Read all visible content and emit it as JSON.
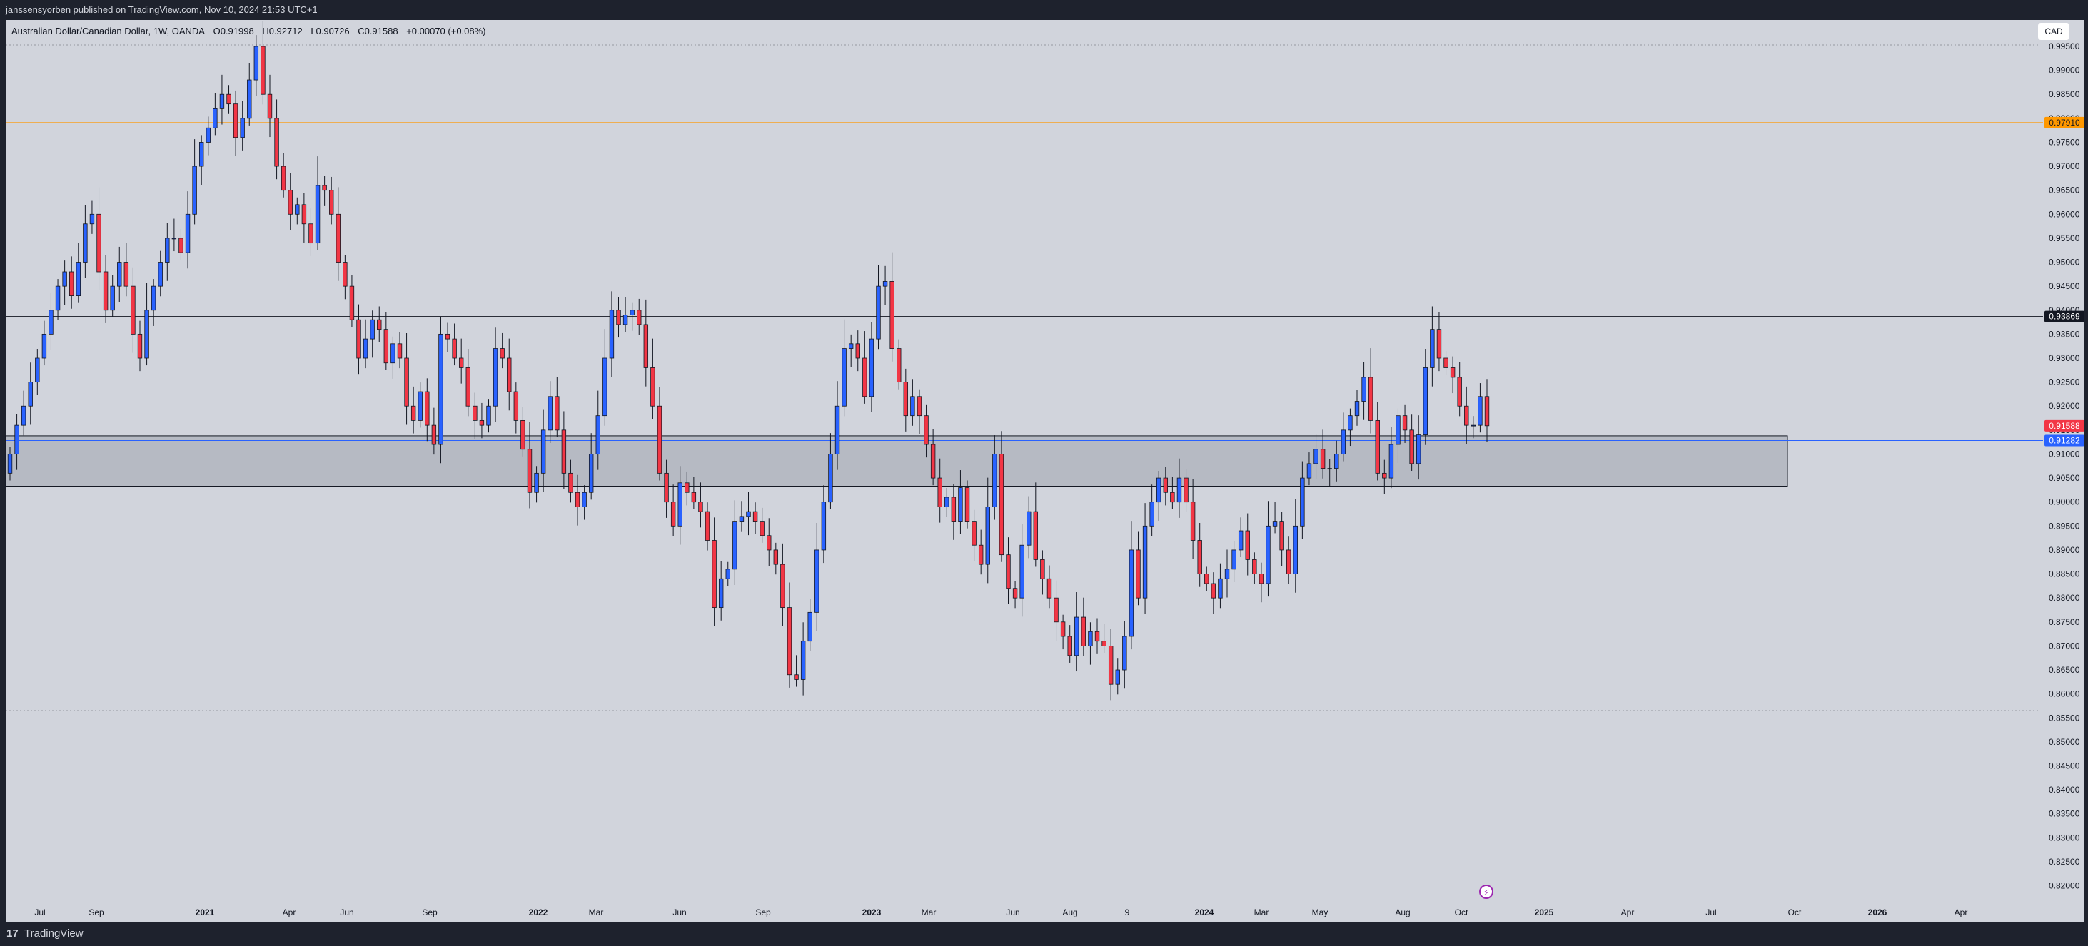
{
  "header": {
    "published": "janssensyorben published on TradingView.com, Nov 10, 2024 21:53 UTC+1"
  },
  "legend": {
    "symbol": "Australian Dollar/Canadian Dollar, 1W, OANDA",
    "open": "O0.91998",
    "high": "H0.92712",
    "low": "L0.90726",
    "close": "C0.91588",
    "change": "+0.00070 (+0.08%)"
  },
  "currency_button": "CAD",
  "footer": {
    "logo": "17",
    "brand": "TradingView"
  },
  "colors": {
    "up": "#2962ff",
    "down": "#f23645",
    "chart_bg": "#d1d4dc",
    "level_orange": "#ff9800",
    "level_black": "#131722",
    "level_blue": "#2962ff",
    "zone": "#b2b5be"
  },
  "chart_data": {
    "type": "candlestick",
    "interval": "1W",
    "ylim": [
      0.8125,
      1.0005
    ],
    "y_ticks": [
      "0.99500",
      "0.99000",
      "0.98500",
      "0.98000",
      "0.97500",
      "0.97000",
      "0.96500",
      "0.96000",
      "0.95500",
      "0.95000",
      "0.94500",
      "0.94000",
      "0.93500",
      "0.93000",
      "0.92500",
      "0.92000",
      "0.91500",
      "0.91000",
      "0.90500",
      "0.90000",
      "0.89500",
      "0.89000",
      "0.88500",
      "0.88000",
      "0.87500",
      "0.87000",
      "0.86500",
      "0.86000",
      "0.85500",
      "0.85000",
      "0.84500",
      "0.84000",
      "0.83500",
      "0.83000",
      "0.82500",
      "0.82000"
    ],
    "x_ticks": [
      {
        "label": "Jul",
        "bold": false
      },
      {
        "label": "Sep",
        "bold": false
      },
      {
        "label": "2021",
        "bold": true
      },
      {
        "label": "Apr",
        "bold": false
      },
      {
        "label": "Jun",
        "bold": false
      },
      {
        "label": "Sep",
        "bold": false
      },
      {
        "label": "2022",
        "bold": true
      },
      {
        "label": "Mar",
        "bold": false
      },
      {
        "label": "Jun",
        "bold": false
      },
      {
        "label": "Sep",
        "bold": false
      },
      {
        "label": "2023",
        "bold": true
      },
      {
        "label": "Mar",
        "bold": false
      },
      {
        "label": "Jun",
        "bold": false
      },
      {
        "label": "Aug",
        "bold": false
      },
      {
        "label": "9",
        "bold": false
      },
      {
        "label": "2024",
        "bold": true
      },
      {
        "label": "Mar",
        "bold": false
      },
      {
        "label": "May",
        "bold": false
      },
      {
        "label": "Aug",
        "bold": false
      },
      {
        "label": "Oct",
        "bold": false
      },
      {
        "label": "2025",
        "bold": true
      },
      {
        "label": "Apr",
        "bold": false
      },
      {
        "label": "Jul",
        "bold": false
      },
      {
        "label": "Oct",
        "bold": false
      },
      {
        "label": "2026",
        "bold": true
      },
      {
        "label": "Apr",
        "bold": false
      }
    ],
    "levels": [
      {
        "label": "0.97910",
        "value": 0.9791,
        "style": "orange"
      },
      {
        "label": "0.93869",
        "value": 0.93869,
        "style": "black"
      },
      {
        "label": "0.91282",
        "value": 0.91282,
        "style": "blue"
      }
    ],
    "last_price": {
      "label": "0.91588",
      "value": 0.91588
    },
    "zone": {
      "low": 0.9033,
      "high": 0.9138
    },
    "closes": [
      0.91,
      0.916,
      0.92,
      0.925,
      0.93,
      0.935,
      0.94,
      0.945,
      0.948,
      0.943,
      0.95,
      0.958,
      0.96,
      0.948,
      0.94,
      0.945,
      0.95,
      0.945,
      0.935,
      0.93,
      0.94,
      0.945,
      0.95,
      0.955,
      0.955,
      0.952,
      0.96,
      0.97,
      0.975,
      0.978,
      0.982,
      0.985,
      0.983,
      0.976,
      0.98,
      0.988,
      0.995,
      0.985,
      0.98,
      0.97,
      0.965,
      0.96,
      0.962,
      0.958,
      0.954,
      0.966,
      0.965,
      0.96,
      0.95,
      0.945,
      0.938,
      0.93,
      0.934,
      0.938,
      0.936,
      0.929,
      0.933,
      0.93,
      0.92,
      0.917,
      0.923,
      0.916,
      0.912,
      0.935,
      0.934,
      0.93,
      0.928,
      0.92,
      0.917,
      0.916,
      0.92,
      0.932,
      0.93,
      0.923,
      0.917,
      0.911,
      0.902,
      0.906,
      0.915,
      0.922,
      0.915,
      0.906,
      0.902,
      0.899,
      0.902,
      0.91,
      0.918,
      0.93,
      0.94,
      0.937,
      0.939,
      0.94,
      0.937,
      0.928,
      0.92,
      0.906,
      0.9,
      0.895,
      0.904,
      0.902,
      0.9,
      0.898,
      0.892,
      0.878,
      0.884,
      0.886,
      0.896,
      0.897,
      0.898,
      0.896,
      0.893,
      0.89,
      0.887,
      0.878,
      0.864,
      0.863,
      0.871,
      0.877,
      0.89,
      0.9,
      0.91,
      0.92,
      0.932,
      0.933,
      0.93,
      0.922,
      0.934,
      0.945,
      0.946,
      0.932,
      0.925,
      0.918,
      0.922,
      0.918,
      0.912,
      0.905,
      0.899,
      0.901,
      0.896,
      0.903,
      0.896,
      0.891,
      0.887,
      0.899,
      0.91,
      0.889,
      0.882,
      0.88,
      0.891,
      0.898,
      0.888,
      0.884,
      0.88,
      0.875,
      0.872,
      0.868,
      0.876,
      0.87,
      0.873,
      0.871,
      0.87,
      0.862,
      0.865,
      0.872,
      0.89,
      0.88,
      0.895,
      0.9,
      0.905,
      0.902,
      0.9,
      0.905,
      0.9,
      0.892,
      0.885,
      0.883,
      0.88,
      0.884,
      0.886,
      0.89,
      0.894,
      0.888,
      0.885,
      0.883,
      0.895,
      0.896,
      0.89,
      0.885,
      0.895,
      0.905,
      0.908,
      0.911,
      0.907,
      0.907,
      0.91,
      0.915,
      0.918,
      0.921,
      0.926,
      0.917,
      0.906,
      0.905,
      0.912,
      0.918,
      0.915,
      0.908,
      0.914,
      0.928,
      0.936,
      0.93,
      0.928,
      0.926,
      0.92,
      0.916,
      0.916,
      0.922,
      0.9159
    ]
  }
}
